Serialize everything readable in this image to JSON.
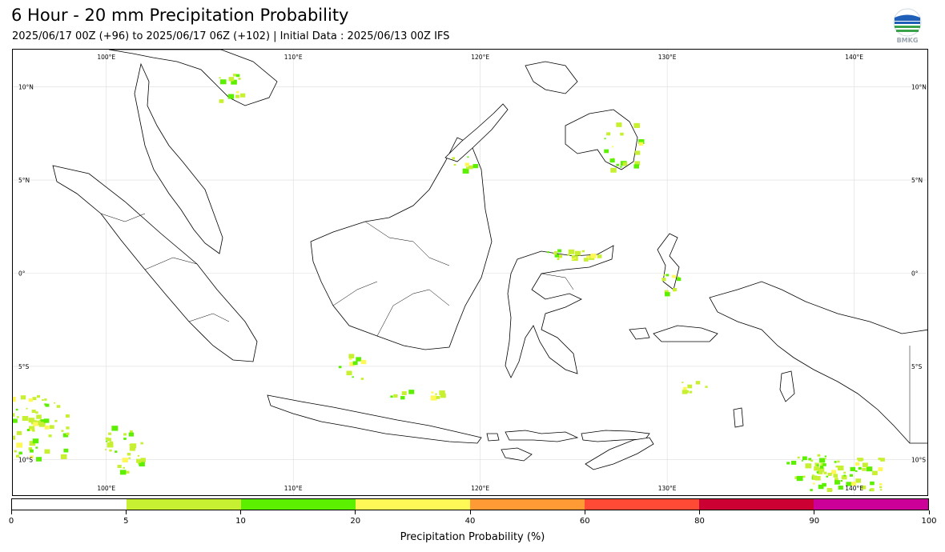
{
  "header": {
    "title": "6 Hour - 20 mm Precipitation Probability",
    "subtitle": "2025/06/17 00Z (+96) to 2025/06/17 06Z (+102) | Initial Data : 2025/06/13 00Z IFS",
    "logo_text": "BMKG"
  },
  "map": {
    "lon_range": [
      95,
      144
    ],
    "lat_range": [
      -12,
      12
    ],
    "lon_ticks": [
      {
        "value": 100,
        "label": "100°E"
      },
      {
        "value": 110,
        "label": "110°E"
      },
      {
        "value": 120,
        "label": "120°E"
      },
      {
        "value": 130,
        "label": "130°E"
      },
      {
        "value": 140,
        "label": "140°E"
      }
    ],
    "lat_ticks": [
      {
        "value": 10,
        "label": "10°N"
      },
      {
        "value": 5,
        "label": "5°N"
      },
      {
        "value": 0,
        "label": "0°"
      },
      {
        "value": -5,
        "label": "5°S"
      },
      {
        "value": -10,
        "label": "10°S"
      }
    ],
    "grid": true
  },
  "colorbar": {
    "title": "Precipitation Probability (%)",
    "ticks": [
      "0",
      "5",
      "10",
      "20",
      "40",
      "60",
      "80",
      "90",
      "100"
    ],
    "colors": [
      "#ffffff",
      "#c8f032",
      "#5cf000",
      "#fff857",
      "#ff9a35",
      "#ff4b35",
      "#cc0033",
      "#cc0099"
    ]
  }
}
